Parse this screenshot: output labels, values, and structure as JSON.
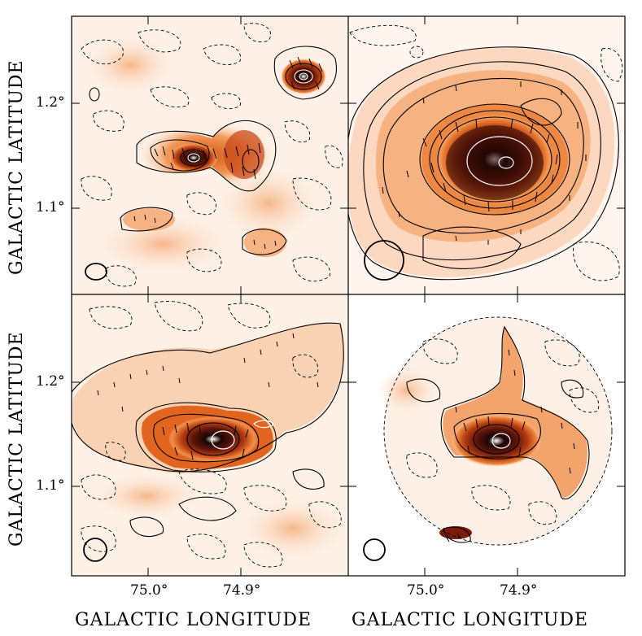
{
  "figure": {
    "y_axis_title": "GALACTIC LATITUDE",
    "x_axis_title": "GALACTIC LONGITUDE",
    "y_ticks": [
      "1.2°",
      "1.1°"
    ],
    "x_ticks": [
      "75.0°",
      "74.9°"
    ]
  },
  "colors": {
    "background": "#ffffff",
    "colormap_low": "#fff4ec",
    "colormap_mid": "#e86a1c",
    "colormap_high": "#1a0503",
    "contour": "#000000",
    "vector": "#000000"
  },
  "panels": [
    {
      "id": "top-left",
      "description_icon": "beam-ellipse-small"
    },
    {
      "id": "top-right",
      "description_icon": "beam-circle-large"
    },
    {
      "id": "bottom-left",
      "description_icon": "beam-circle-medium"
    },
    {
      "id": "bottom-right",
      "description_icon": "beam-circle-medium"
    }
  ]
}
